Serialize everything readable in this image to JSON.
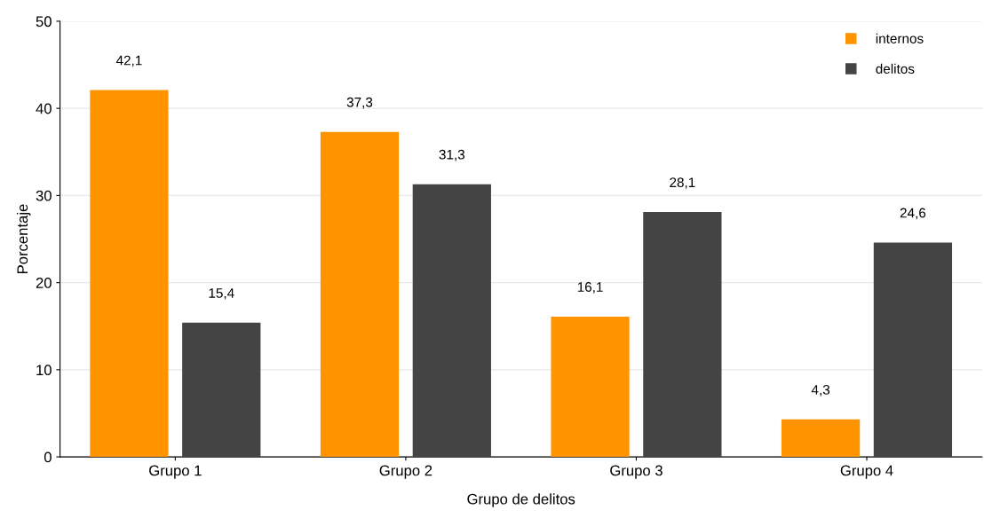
{
  "chart_data": {
    "type": "bar",
    "xlabel": "Grupo de delitos",
    "ylabel": "Porcentaje",
    "categories": [
      "Grupo 1",
      "Grupo 2",
      "Grupo 3",
      "Grupo 4"
    ],
    "series": [
      {
        "name": "internos",
        "color": "#ff9400",
        "values": [
          42.1,
          37.3,
          16.1,
          4.3
        ],
        "value_labels": [
          "42,1",
          "37,3",
          "16,1",
          "4,3"
        ]
      },
      {
        "name": "delitos",
        "color": "#444444",
        "values": [
          15.4,
          31.3,
          28.1,
          24.6
        ],
        "value_labels": [
          "15,4",
          "31,3",
          "28,1",
          "24,6"
        ]
      }
    ],
    "ylim": [
      0,
      50
    ],
    "yticks": [
      0,
      10,
      20,
      30,
      40,
      50
    ],
    "grid": "y",
    "legend": "top right"
  }
}
